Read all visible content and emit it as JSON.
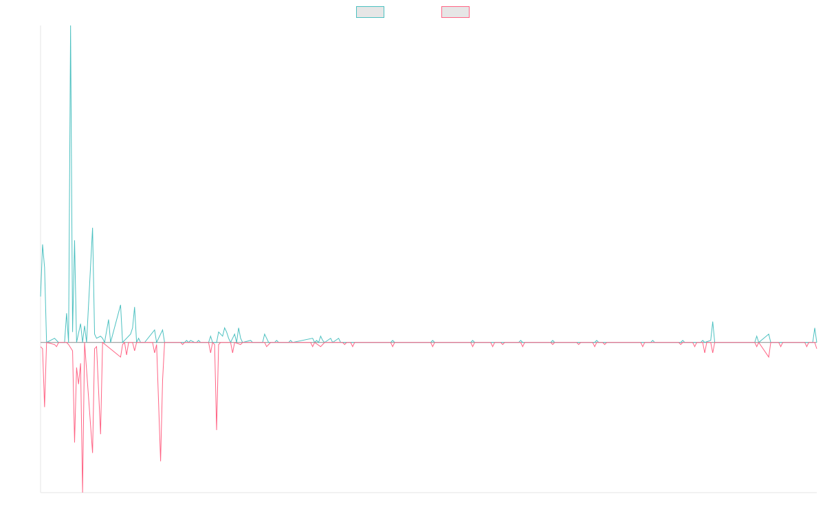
{
  "chart_data": {
    "type": "line",
    "legend_placement": "top-center",
    "grid": false,
    "xlim": [
      0,
      388
    ],
    "ylim": [
      -72,
      152
    ],
    "series": [
      {
        "color": "#4bc0c0",
        "legend_fill": "#e6e6e6",
        "values": [
          [
            0,
            22
          ],
          [
            1,
            47
          ],
          [
            2,
            36
          ],
          [
            3,
            0
          ],
          [
            7,
            2
          ],
          [
            8,
            1
          ],
          [
            9,
            0
          ],
          [
            12,
            0
          ],
          [
            13,
            14
          ],
          [
            14,
            0
          ],
          [
            15,
            152
          ],
          [
            16,
            5
          ],
          [
            17,
            49
          ],
          [
            18,
            0
          ],
          [
            20,
            9
          ],
          [
            21,
            0
          ],
          [
            22,
            8
          ],
          [
            23,
            0
          ],
          [
            26,
            55
          ],
          [
            27,
            4
          ],
          [
            28,
            2
          ],
          [
            30,
            3
          ],
          [
            31,
            2
          ],
          [
            32,
            0
          ],
          [
            34,
            11
          ],
          [
            35,
            0
          ],
          [
            40,
            18
          ],
          [
            41,
            0
          ],
          [
            45,
            4
          ],
          [
            46,
            7
          ],
          [
            47,
            17
          ],
          [
            48,
            0
          ],
          [
            49,
            2
          ],
          [
            50,
            0
          ],
          [
            52,
            0
          ],
          [
            57,
            6
          ],
          [
            58,
            0
          ],
          [
            61,
            6
          ],
          [
            62,
            0
          ],
          [
            72,
            0
          ],
          [
            73,
            1
          ],
          [
            74,
            0
          ],
          [
            75,
            1
          ],
          [
            77,
            0
          ],
          [
            78,
            0
          ],
          [
            79,
            1
          ],
          [
            80,
            0
          ],
          [
            84,
            0
          ],
          [
            85,
            3
          ],
          [
            86,
            0
          ],
          [
            88,
            0
          ],
          [
            89,
            5
          ],
          [
            91,
            3
          ],
          [
            92,
            7
          ],
          [
            93,
            5
          ],
          [
            94,
            2
          ],
          [
            95,
            0
          ],
          [
            96,
            2
          ],
          [
            97,
            4
          ],
          [
            98,
            0
          ],
          [
            99,
            7
          ],
          [
            100,
            2
          ],
          [
            101,
            0
          ],
          [
            105,
            1
          ],
          [
            106,
            0
          ],
          [
            111,
            0
          ],
          [
            112,
            4
          ],
          [
            113,
            2
          ],
          [
            114,
            0
          ],
          [
            117,
            0
          ],
          [
            118,
            1
          ],
          [
            119,
            0
          ],
          [
            124,
            0
          ],
          [
            125,
            1
          ],
          [
            126,
            0
          ],
          [
            136,
            2
          ],
          [
            137,
            0
          ],
          [
            138,
            1
          ],
          [
            139,
            0
          ],
          [
            140,
            3
          ],
          [
            141,
            1
          ],
          [
            142,
            0
          ],
          [
            145,
            2
          ],
          [
            146,
            0
          ],
          [
            149,
            2
          ],
          [
            150,
            0
          ],
          [
            175,
            0
          ],
          [
            176,
            1
          ],
          [
            177,
            0
          ],
          [
            195,
            0
          ],
          [
            196,
            1
          ],
          [
            197,
            0
          ],
          [
            215,
            0
          ],
          [
            216,
            1
          ],
          [
            217,
            0
          ],
          [
            239,
            0
          ],
          [
            240,
            1
          ],
          [
            241,
            0
          ],
          [
            255,
            0
          ],
          [
            256,
            1
          ],
          [
            257,
            0
          ],
          [
            277,
            0
          ],
          [
            278,
            1
          ],
          [
            279,
            0
          ],
          [
            305,
            0
          ],
          [
            306,
            1
          ],
          [
            307,
            0
          ],
          [
            320,
            0
          ],
          [
            321,
            1
          ],
          [
            322,
            0
          ],
          [
            330,
            0
          ],
          [
            331,
            1
          ],
          [
            332,
            0
          ],
          [
            335,
            1
          ],
          [
            336,
            10
          ],
          [
            337,
            0
          ],
          [
            357,
            0
          ],
          [
            358,
            3
          ],
          [
            359,
            0
          ],
          [
            364,
            4
          ],
          [
            365,
            0
          ],
          [
            386,
            0
          ],
          [
            387,
            7
          ],
          [
            388,
            0
          ]
        ]
      },
      {
        "color": "#ff6384",
        "legend_fill": "#e6e6e6",
        "values": [
          [
            0,
            -2
          ],
          [
            1,
            -3
          ],
          [
            2,
            -31
          ],
          [
            3,
            0
          ],
          [
            7,
            -1
          ],
          [
            8,
            -2
          ],
          [
            9,
            0
          ],
          [
            13,
            0
          ],
          [
            14,
            -1
          ],
          [
            16,
            -4
          ],
          [
            17,
            -48
          ],
          [
            18,
            -12
          ],
          [
            19,
            -20
          ],
          [
            20,
            -10
          ],
          [
            21,
            -72
          ],
          [
            22,
            0
          ],
          [
            26,
            -53
          ],
          [
            27,
            -3
          ],
          [
            28,
            -2
          ],
          [
            30,
            -44
          ],
          [
            31,
            0
          ],
          [
            40,
            -7
          ],
          [
            41,
            -1
          ],
          [
            42,
            0
          ],
          [
            43,
            -6
          ],
          [
            44,
            0
          ],
          [
            46,
            0
          ],
          [
            47,
            -4
          ],
          [
            48,
            0
          ],
          [
            56,
            0
          ],
          [
            57,
            -5
          ],
          [
            58,
            -1
          ],
          [
            60,
            -57
          ],
          [
            61,
            -18
          ],
          [
            62,
            0
          ],
          [
            70,
            0
          ],
          [
            71,
            -1
          ],
          [
            72,
            0
          ],
          [
            84,
            0
          ],
          [
            85,
            -5
          ],
          [
            86,
            0
          ],
          [
            87,
            -1
          ],
          [
            88,
            -42
          ],
          [
            89,
            -1
          ],
          [
            90,
            0
          ],
          [
            95,
            0
          ],
          [
            96,
            -5
          ],
          [
            97,
            0
          ],
          [
            100,
            -1
          ],
          [
            101,
            0
          ],
          [
            112,
            0
          ],
          [
            113,
            -2
          ],
          [
            114,
            -1
          ],
          [
            115,
            0
          ],
          [
            135,
            0
          ],
          [
            136,
            -2
          ],
          [
            137,
            0
          ],
          [
            140,
            -2
          ],
          [
            141,
            -1
          ],
          [
            142,
            0
          ],
          [
            151,
            0
          ],
          [
            152,
            -1
          ],
          [
            153,
            0
          ],
          [
            155,
            0
          ],
          [
            156,
            -2
          ],
          [
            157,
            0
          ],
          [
            175,
            0
          ],
          [
            176,
            -2
          ],
          [
            177,
            0
          ],
          [
            195,
            0
          ],
          [
            196,
            -2
          ],
          [
            197,
            0
          ],
          [
            215,
            0
          ],
          [
            216,
            -2
          ],
          [
            217,
            0
          ],
          [
            225,
            0
          ],
          [
            226,
            -2
          ],
          [
            227,
            0
          ],
          [
            230,
            0
          ],
          [
            231,
            -1
          ],
          [
            232,
            0
          ],
          [
            240,
            0
          ],
          [
            241,
            -2
          ],
          [
            242,
            0
          ],
          [
            255,
            0
          ],
          [
            256,
            -1
          ],
          [
            257,
            0
          ],
          [
            268,
            0
          ],
          [
            269,
            -1
          ],
          [
            270,
            0
          ],
          [
            276,
            0
          ],
          [
            277,
            -2
          ],
          [
            278,
            0
          ],
          [
            281,
            0
          ],
          [
            282,
            -1
          ],
          [
            283,
            0
          ],
          [
            300,
            0
          ],
          [
            301,
            -2
          ],
          [
            302,
            0
          ],
          [
            319,
            0
          ],
          [
            320,
            -1
          ],
          [
            321,
            0
          ],
          [
            326,
            0
          ],
          [
            327,
            -2
          ],
          [
            328,
            0
          ],
          [
            331,
            0
          ],
          [
            332,
            -5
          ],
          [
            333,
            0
          ],
          [
            335,
            0
          ],
          [
            336,
            -5
          ],
          [
            337,
            0
          ],
          [
            357,
            0
          ],
          [
            358,
            -2
          ],
          [
            359,
            0
          ],
          [
            364,
            -7
          ],
          [
            365,
            0
          ],
          [
            369,
            0
          ],
          [
            370,
            -2
          ],
          [
            371,
            0
          ],
          [
            382,
            0
          ],
          [
            383,
            -2
          ],
          [
            384,
            0
          ],
          [
            387,
            0
          ],
          [
            388,
            -3
          ]
        ]
      }
    ]
  }
}
